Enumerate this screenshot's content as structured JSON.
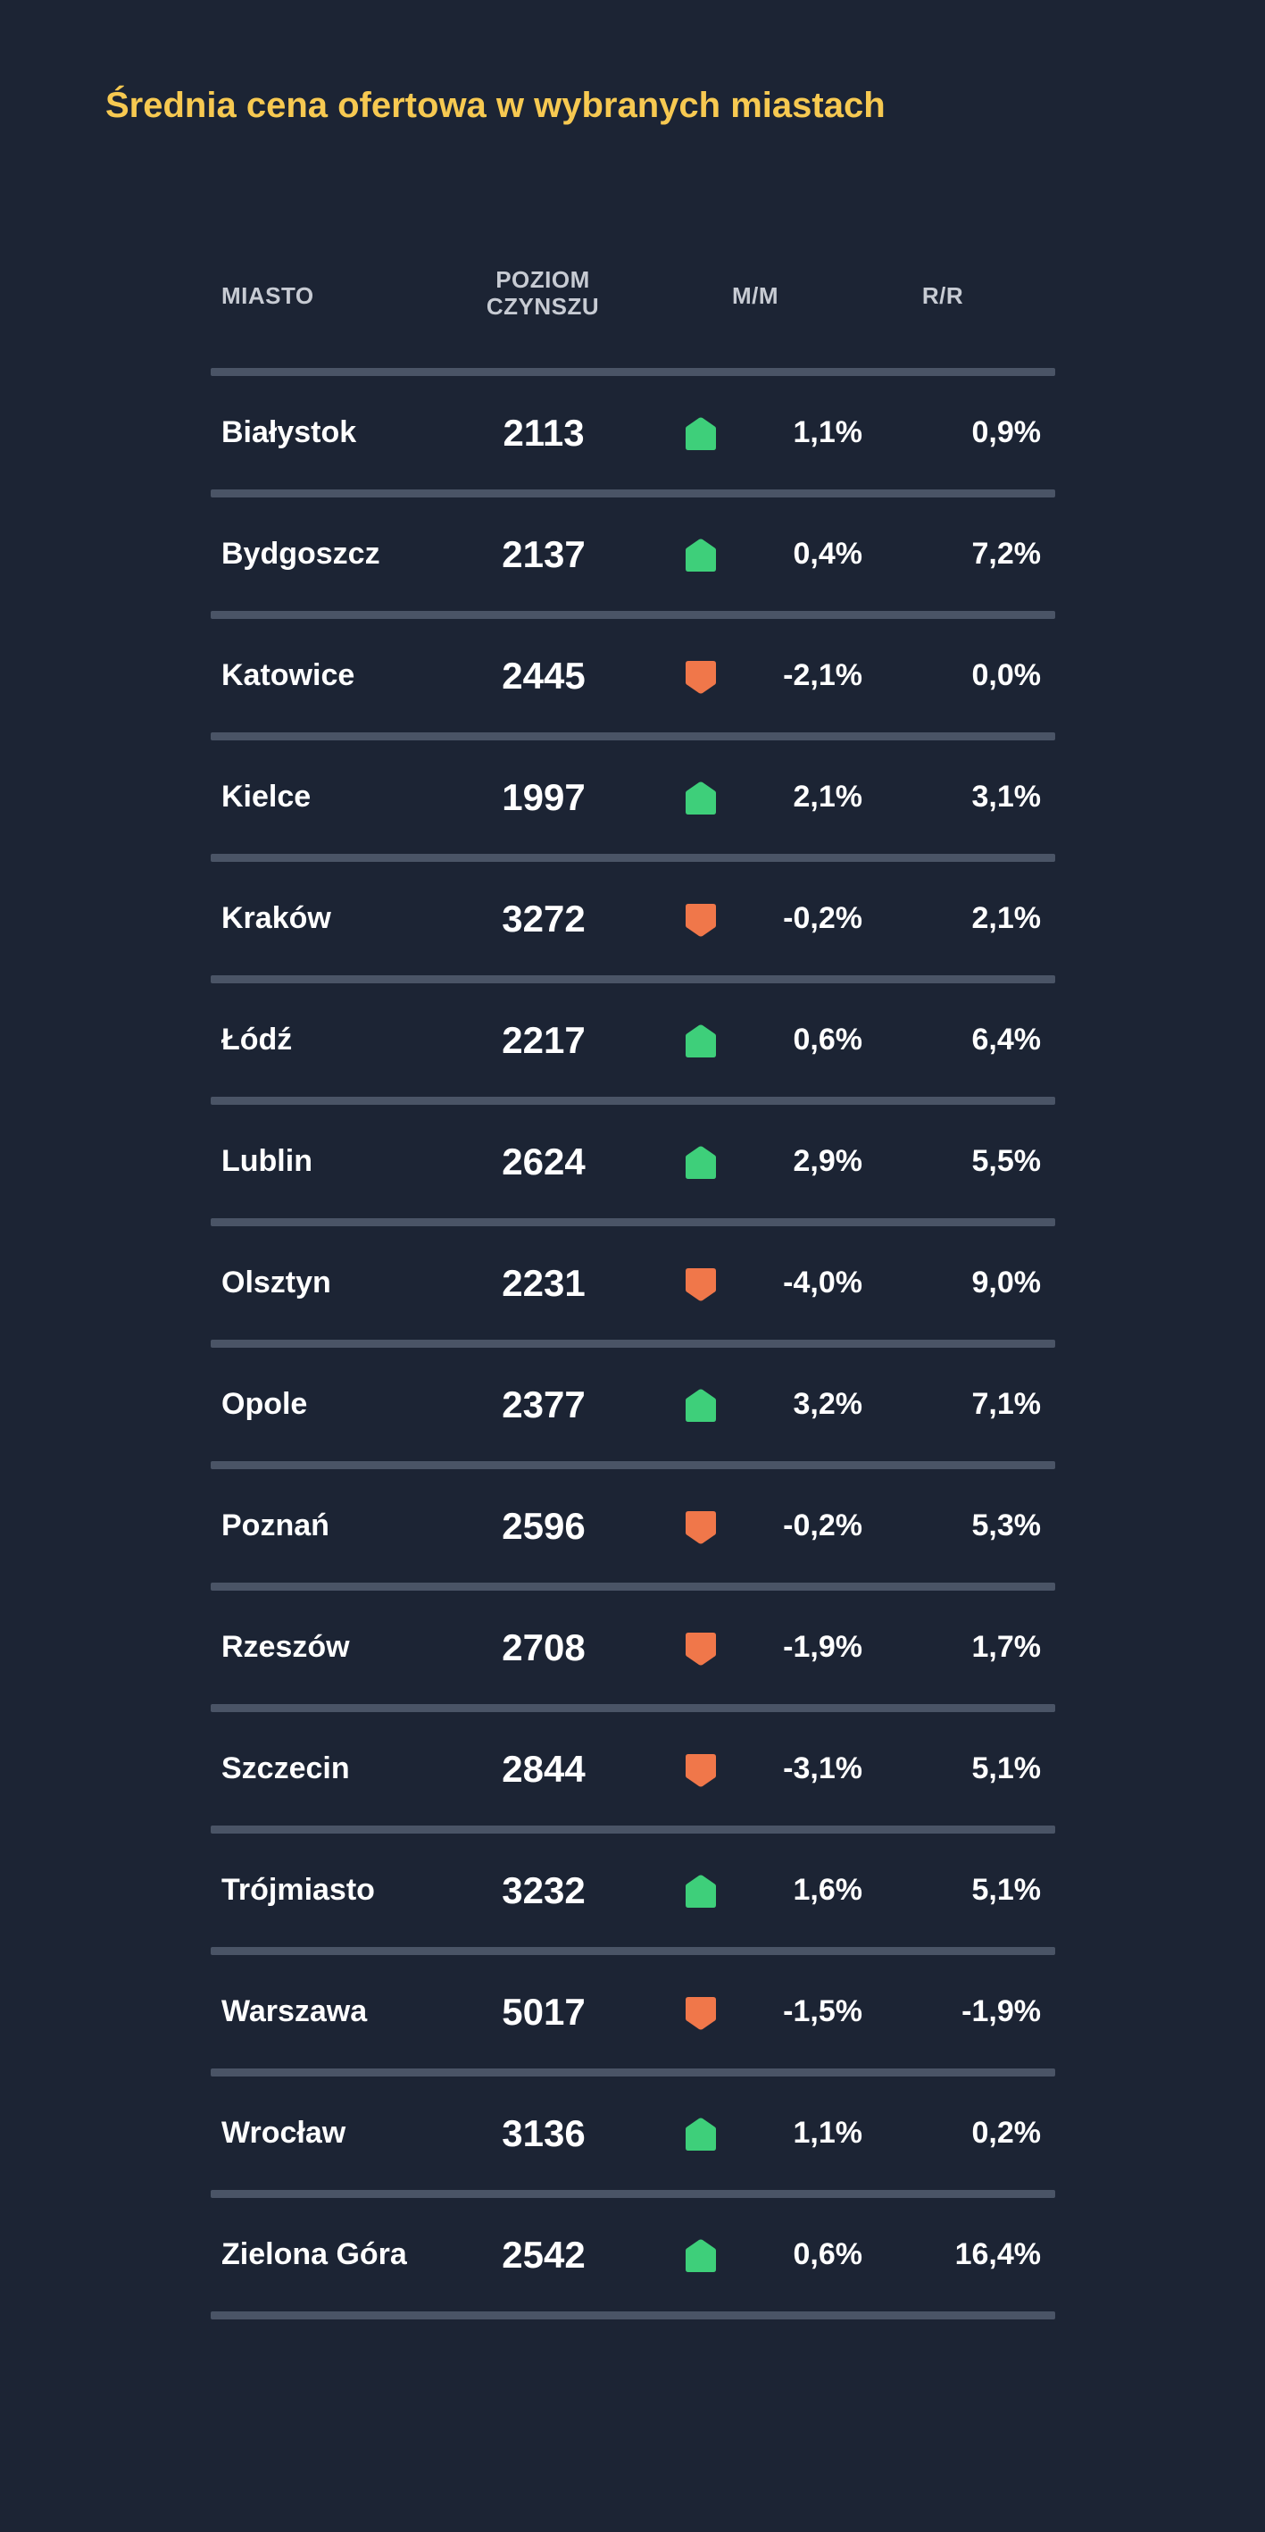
{
  "title": "Średnia cena ofertowa w wybranych miastach",
  "headers": {
    "city": "MIASTO",
    "rent_line1": "POZIOM",
    "rent_line2": "CZYNSZU",
    "mm": "M/M",
    "rr": "R/R"
  },
  "colors": {
    "background": "#1c2434",
    "title": "#f7c951",
    "up": "#3ecf7a",
    "down": "#f0774a",
    "divider": "#4a5466"
  },
  "icons": {
    "up": "up-house-arrow-icon",
    "down": "down-shield-arrow-icon"
  },
  "chart_data": {
    "type": "table",
    "title": "Średnia cena ofertowa w wybranych miastach",
    "columns": [
      "MIASTO",
      "POZIOM CZYNSZU",
      "M/M",
      "R/R"
    ],
    "rows": [
      {
        "city": "Białystok",
        "rent": "2113",
        "trend": "up",
        "mm": "1,1%",
        "rr": "0,9%"
      },
      {
        "city": "Bydgoszcz",
        "rent": "2137",
        "trend": "up",
        "mm": "0,4%",
        "rr": "7,2%"
      },
      {
        "city": "Katowice",
        "rent": "2445",
        "trend": "down",
        "mm": "-2,1%",
        "rr": "0,0%"
      },
      {
        "city": "Kielce",
        "rent": "1997",
        "trend": "up",
        "mm": "2,1%",
        "rr": "3,1%"
      },
      {
        "city": "Kraków",
        "rent": "3272",
        "trend": "down",
        "mm": "-0,2%",
        "rr": "2,1%"
      },
      {
        "city": "Łódź",
        "rent": "2217",
        "trend": "up",
        "mm": "0,6%",
        "rr": "6,4%"
      },
      {
        "city": "Lublin",
        "rent": "2624",
        "trend": "up",
        "mm": "2,9%",
        "rr": "5,5%"
      },
      {
        "city": "Olsztyn",
        "rent": "2231",
        "trend": "down",
        "mm": "-4,0%",
        "rr": "9,0%"
      },
      {
        "city": "Opole",
        "rent": "2377",
        "trend": "up",
        "mm": "3,2%",
        "rr": "7,1%"
      },
      {
        "city": "Poznań",
        "rent": "2596",
        "trend": "down",
        "mm": "-0,2%",
        "rr": "5,3%"
      },
      {
        "city": "Rzeszów",
        "rent": "2708",
        "trend": "down",
        "mm": "-1,9%",
        "rr": "1,7%"
      },
      {
        "city": "Szczecin",
        "rent": "2844",
        "trend": "down",
        "mm": "-3,1%",
        "rr": "5,1%"
      },
      {
        "city": "Trójmiasto",
        "rent": "3232",
        "trend": "up",
        "mm": "1,6%",
        "rr": "5,1%"
      },
      {
        "city": "Warszawa",
        "rent": "5017",
        "trend": "down",
        "mm": "-1,5%",
        "rr": "-1,9%"
      },
      {
        "city": "Wrocław",
        "rent": "3136",
        "trend": "up",
        "mm": "1,1%",
        "rr": "0,2%"
      },
      {
        "city": "Zielona Góra",
        "rent": "2542",
        "trend": "up",
        "mm": "0,6%",
        "rr": "16,4%"
      }
    ]
  }
}
